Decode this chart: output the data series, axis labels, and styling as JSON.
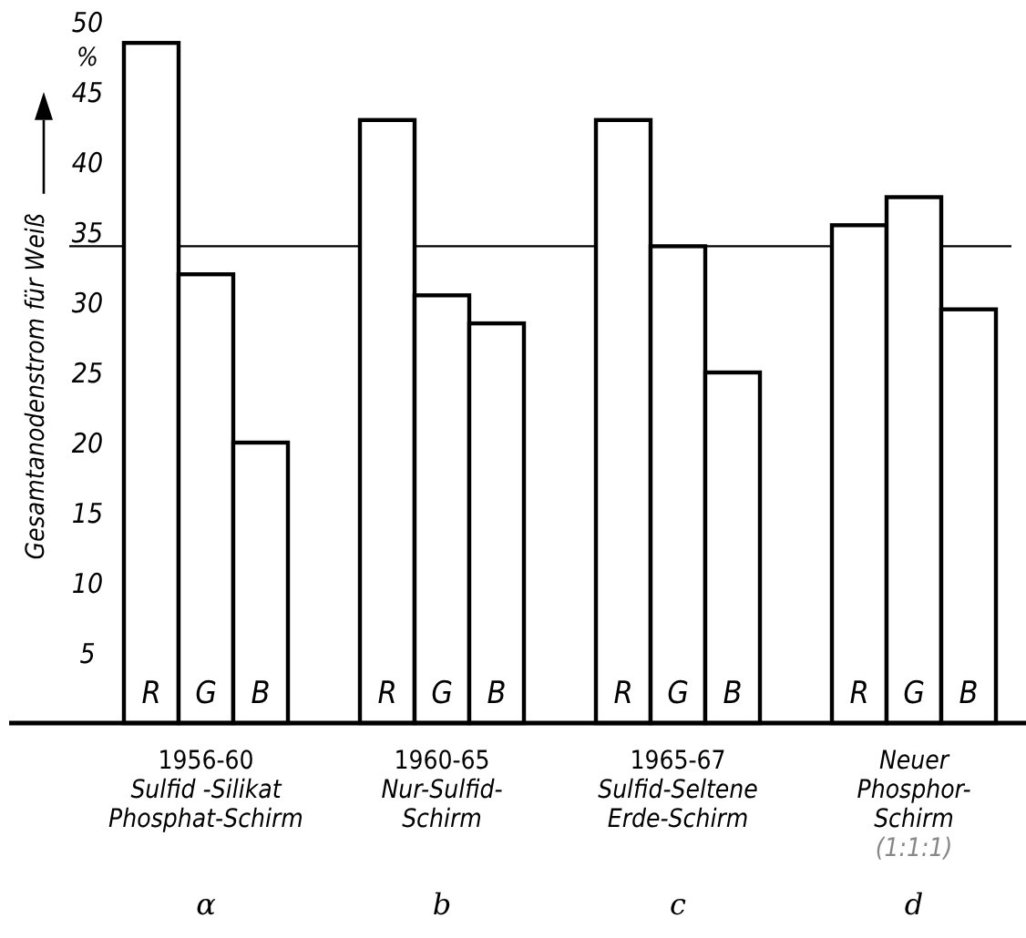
{
  "chart_data": {
    "type": "bar",
    "ylabel": "Gesamtanodenstrom für Weiß",
    "categories": [
      "1956-60\nSulfid -Silikat\nPhosphat-Schirm",
      "1960-65\nNur-Sulfid-\nSchirm",
      "1965-67\nSulfid-Seltene\nErde-Schirm",
      "Neuer\nPhosphor-\nSchirm\n(1:1:1)"
    ],
    "series": [
      {
        "name": "R",
        "color": "#ffffff",
        "values": [
          48.5,
          43,
          43,
          35.5
        ]
      },
      {
        "name": "G",
        "color": "#ffffff",
        "values": [
          32,
          30.5,
          34,
          37.5
        ]
      },
      {
        "name": "B",
        "color": "#ffffff",
        "values": [
          20,
          28.5,
          25,
          29.5
        ]
      }
    ],
    "ylim": [
      0,
      50
    ],
    "yticks": [
      5,
      10,
      15,
      20,
      25,
      30,
      35,
      40,
      45,
      50
    ],
    "ref_lines": [
      {
        "axis": "y",
        "value": 34
      }
    ],
    "annotations": [
      "%",
      "α",
      "b",
      "c",
      "d"
    ],
    "grid": false
  }
}
